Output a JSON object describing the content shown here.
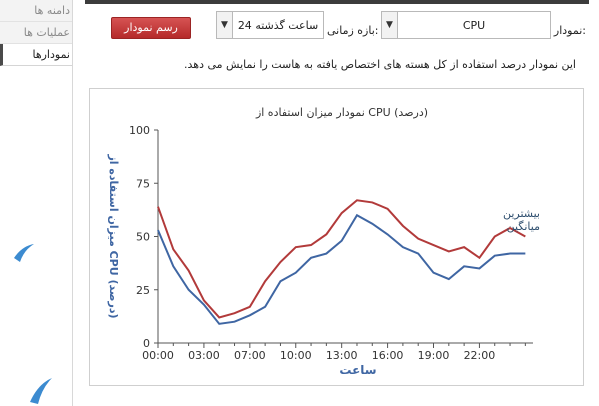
{
  "nav": {
    "items": [
      {
        "label": "دامنه ها",
        "active": false
      },
      {
        "label": "عملیات ها",
        "active": false
      },
      {
        "label": "نمودارها",
        "active": true
      }
    ]
  },
  "controls": {
    "chart_label": "نمودار:",
    "chart_value": "CPU",
    "range_label": "بازه زمانی:",
    "range_value": "24 ساعت گذشته",
    "draw_button": "رسم نمودار"
  },
  "description": "این نمودار درصد استفاده از کل هسته های اختصاص یافته به هاست را نمایش می دهد.",
  "colors": {
    "max_series": "#b23a3a",
    "avg_series": "#3f66a3",
    "button": "#c33a3a"
  },
  "chart_data": {
    "type": "line",
    "title": "نمودار میزان استفاده از CPU (درصد)",
    "xlabel": "ساعت",
    "ylabel": "میزان استفاده از CPU (درصد)",
    "ylim": [
      0,
      100
    ],
    "yticks": [
      "0",
      "25",
      "50",
      "75",
      "100"
    ],
    "xlim": [
      0,
      24.5
    ],
    "xticks": [
      {
        "x": 0,
        "label": "00:00"
      },
      {
        "x": 3,
        "label": "03:00"
      },
      {
        "x": 6,
        "label": "07:00"
      },
      {
        "x": 9,
        "label": "10:00"
      },
      {
        "x": 12,
        "label": "13:00"
      },
      {
        "x": 15,
        "label": "16:00"
      },
      {
        "x": 18,
        "label": "19:00"
      },
      {
        "x": 21,
        "label": "22:00"
      }
    ],
    "grid": false,
    "legend": "right",
    "x": [
      0,
      1,
      2,
      3,
      4,
      5,
      6,
      7,
      8,
      9,
      10,
      11,
      12,
      13,
      14,
      15,
      16,
      17,
      18,
      19,
      20,
      21,
      22,
      23,
      24
    ],
    "series": [
      {
        "name": "بیشترین",
        "color": "#b23a3a",
        "values": [
          64,
          44,
          34,
          20,
          12,
          14,
          17,
          29,
          38,
          45,
          46,
          51,
          61,
          67,
          66,
          63,
          55,
          49,
          46,
          43,
          45,
          40,
          50,
          54,
          50
        ]
      },
      {
        "name": "میانگین",
        "color": "#3f66a3",
        "values": [
          53,
          36,
          25,
          18,
          9,
          10,
          13,
          17,
          29,
          33,
          40,
          42,
          48,
          60,
          56,
          51,
          45,
          42,
          33,
          30,
          36,
          35,
          41,
          42,
          42
        ]
      }
    ]
  }
}
